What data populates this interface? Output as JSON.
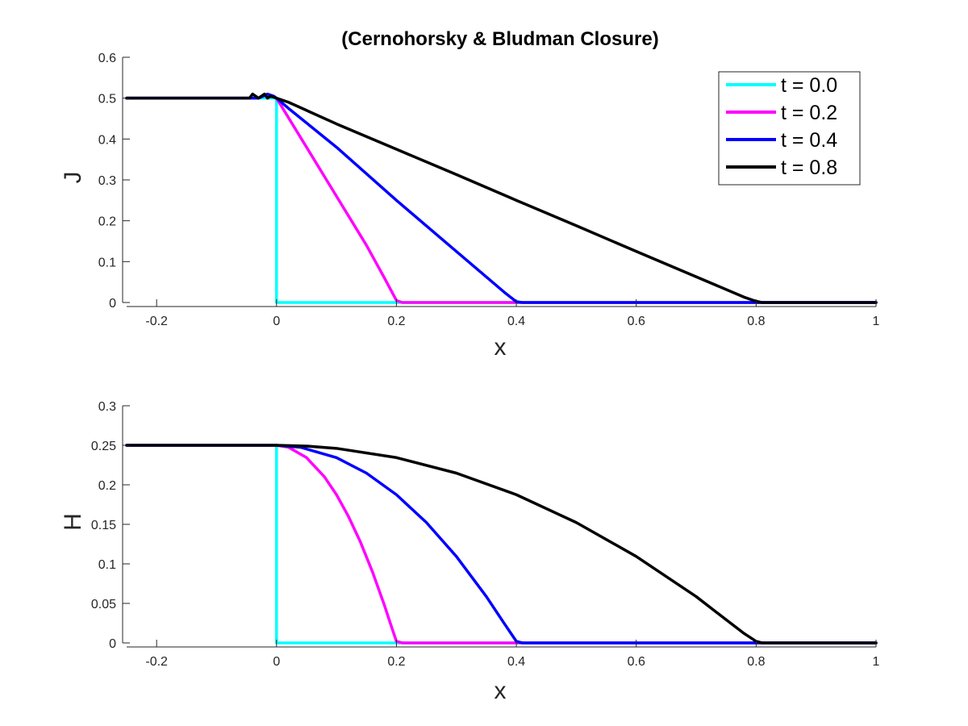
{
  "title": "(Cernohorsky & Bludman Closure)",
  "legend": {
    "placement": "top-right",
    "entries": [
      "t = 0.0",
      "t = 0.2",
      "t = 0.4",
      "t = 0.8"
    ]
  },
  "colors": {
    "t00": "#00ffff",
    "t02": "#ff00ff",
    "t04": "#0000ff",
    "t08": "#000000",
    "axis": "#262626"
  },
  "chart_data": [
    {
      "type": "line",
      "title": "(Cernohorsky & Bludman Closure)",
      "xlabel": "x",
      "ylabel": "J",
      "xlim": [
        -0.25,
        1.0
      ],
      "ylim": [
        0,
        0.6
      ],
      "xticks": [
        -0.2,
        0,
        0.2,
        0.4,
        0.6,
        0.8,
        1
      ],
      "xtick_labels": [
        "-0.2",
        "0",
        "0.2",
        "0.4",
        "0.6",
        "0.8",
        "1"
      ],
      "yticks": [
        0,
        0.1,
        0.2,
        0.3,
        0.4,
        0.5,
        0.6
      ],
      "ytick_labels": [
        "0",
        "0.1",
        "0.2",
        "0.3",
        "0.4",
        "0.5",
        "0.6"
      ],
      "grid": false,
      "legend": "top-right",
      "series": [
        {
          "name": "t = 0.0",
          "color": "#00ffff",
          "x": [
            -0.25,
            0.0,
            0.0,
            0.0,
            1.0
          ],
          "y": [
            0.5,
            0.5,
            0.49,
            0.0,
            0.0
          ]
        },
        {
          "name": "t = 0.2",
          "color": "#ff00ff",
          "x": [
            -0.25,
            -0.03,
            -0.015,
            -0.005,
            0.0,
            0.05,
            0.1,
            0.15,
            0.18,
            0.2,
            0.21,
            1.0
          ],
          "y": [
            0.5,
            0.5,
            0.51,
            0.505,
            0.5,
            0.38,
            0.26,
            0.14,
            0.06,
            0.005,
            0.0,
            0.0
          ]
        },
        {
          "name": "t = 0.4",
          "color": "#0000ff",
          "x": [
            -0.25,
            -0.03,
            -0.015,
            -0.005,
            0.0,
            0.02,
            0.1,
            0.2,
            0.3,
            0.38,
            0.4,
            0.41,
            1.0
          ],
          "y": [
            0.5,
            0.5,
            0.51,
            0.505,
            0.5,
            0.475,
            0.38,
            0.25,
            0.125,
            0.025,
            0.002,
            0.0,
            0.0
          ]
        },
        {
          "name": "t = 0.8",
          "color": "#000000",
          "x": [
            -0.25,
            -0.045,
            -0.04,
            -0.03,
            -0.025,
            -0.02,
            -0.015,
            -0.01,
            0.0,
            0.02,
            0.1,
            0.2,
            0.3,
            0.4,
            0.5,
            0.6,
            0.7,
            0.78,
            0.8,
            0.81,
            1.0
          ],
          "y": [
            0.5,
            0.5,
            0.51,
            0.5,
            0.505,
            0.51,
            0.5,
            0.505,
            0.5,
            0.49,
            0.437,
            0.375,
            0.313,
            0.25,
            0.188,
            0.125,
            0.063,
            0.013,
            0.003,
            0.0,
            0.0
          ]
        }
      ]
    },
    {
      "type": "line",
      "title": "",
      "xlabel": "x",
      "ylabel": "H",
      "xlim": [
        -0.25,
        1.0
      ],
      "ylim": [
        0,
        0.3
      ],
      "xticks": [
        -0.2,
        0,
        0.2,
        0.4,
        0.6,
        0.8,
        1
      ],
      "xtick_labels": [
        "-0.2",
        "0",
        "0.2",
        "0.4",
        "0.6",
        "0.8",
        "1"
      ],
      "yticks": [
        0,
        0.05,
        0.1,
        0.15,
        0.2,
        0.25,
        0.3
      ],
      "ytick_labels": [
        "0",
        "0.05",
        "0.1",
        "0.15",
        "0.2",
        "0.25",
        "0.3"
      ],
      "grid": false,
      "series": [
        {
          "name": "t = 0.0",
          "color": "#00ffff",
          "x": [
            -0.25,
            0.0,
            0.0,
            0.0,
            1.0
          ],
          "y": [
            0.25,
            0.25,
            0.245,
            0.0,
            0.0
          ]
        },
        {
          "name": "t = 0.2",
          "color": "#ff00ff",
          "x": [
            -0.25,
            0.0,
            0.02,
            0.05,
            0.08,
            0.1,
            0.12,
            0.14,
            0.16,
            0.18,
            0.19,
            0.2,
            0.21,
            1.0
          ],
          "y": [
            0.25,
            0.25,
            0.2475,
            0.2344,
            0.21,
            0.1875,
            0.16,
            0.1275,
            0.09,
            0.0475,
            0.0244,
            0.002,
            0.0,
            0.0
          ]
        },
        {
          "name": "t = 0.4",
          "color": "#0000ff",
          "x": [
            -0.25,
            0.0,
            0.04,
            0.1,
            0.15,
            0.2,
            0.25,
            0.3,
            0.35,
            0.38,
            0.4,
            0.41,
            1.0
          ],
          "y": [
            0.25,
            0.25,
            0.2475,
            0.2344,
            0.2148,
            0.1875,
            0.1523,
            0.1094,
            0.0586,
            0.0244,
            0.002,
            0.0,
            0.0
          ]
        },
        {
          "name": "t = 0.8",
          "color": "#000000",
          "x": [
            -0.25,
            0.0,
            0.05,
            0.1,
            0.2,
            0.3,
            0.4,
            0.5,
            0.6,
            0.65,
            0.7,
            0.75,
            0.78,
            0.8,
            0.81,
            1.0
          ],
          "y": [
            0.25,
            0.25,
            0.249,
            0.2461,
            0.2344,
            0.2148,
            0.1875,
            0.1523,
            0.1094,
            0.084,
            0.0586,
            0.0293,
            0.0119,
            0.002,
            0.0,
            0.0
          ]
        }
      ]
    }
  ]
}
